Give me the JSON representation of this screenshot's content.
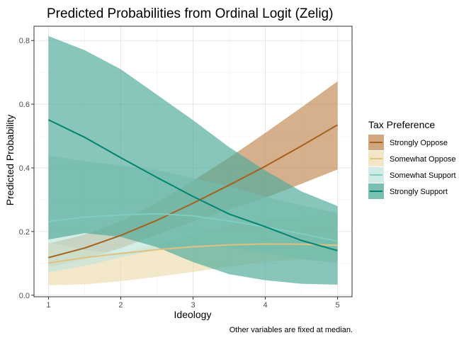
{
  "chart_data": {
    "type": "line",
    "title": "Predicted Probabilities from Ordinal Logit (Zelig)",
    "xlabel": "Ideology",
    "ylabel": "Predicted Probability",
    "caption": "Other variables are fixed at median.",
    "xlim": [
      0.8,
      5.2
    ],
    "ylim": [
      -0.005,
      0.845
    ],
    "x_ticks": [
      1,
      2,
      3,
      4,
      5
    ],
    "x_tick_labels": [
      "1",
      "2",
      "3",
      "4",
      "5"
    ],
    "y_ticks": [
      0.0,
      0.2,
      0.4,
      0.6,
      0.8
    ],
    "y_tick_labels": [
      "0.0",
      "0.2",
      "0.4",
      "0.6",
      "0.8"
    ],
    "grid": true,
    "legend": {
      "title": "Tax Preference",
      "position": "right"
    },
    "x": [
      1,
      1.5,
      2,
      2.5,
      3,
      3.5,
      4,
      4.5,
      5
    ],
    "series": [
      {
        "name": "Strongly Oppose",
        "color": "#A6611A",
        "ribbon_color": "#C28A55",
        "values": [
          0.118,
          0.148,
          0.188,
          0.235,
          0.289,
          0.346,
          0.405,
          0.469,
          0.535
        ],
        "lower": [
          0.088,
          0.113,
          0.148,
          0.19,
          0.232,
          0.27,
          0.306,
          0.35,
          0.395
        ],
        "upper": [
          0.162,
          0.19,
          0.232,
          0.29,
          0.359,
          0.432,
          0.51,
          0.59,
          0.672
        ]
      },
      {
        "name": "Somewhat Oppose",
        "color": "#DFC27D",
        "ribbon_color": "#EFDDB3",
        "values": [
          0.101,
          0.118,
          0.131,
          0.143,
          0.152,
          0.158,
          0.161,
          0.16,
          0.157
        ],
        "lower": [
          0.031,
          0.034,
          0.044,
          0.058,
          0.073,
          0.089,
          0.105,
          0.112,
          0.108
        ],
        "upper": [
          0.166,
          0.142,
          0.131,
          0.16,
          0.189,
          0.222,
          0.239,
          0.245,
          0.257
        ]
      },
      {
        "name": "Somewhat Support",
        "color": "#80CDC1",
        "ribbon_color": "#BFE4DC",
        "values": [
          0.232,
          0.245,
          0.252,
          0.256,
          0.249,
          0.233,
          0.215,
          0.193,
          0.17
        ],
        "lower": [
          0.071,
          0.092,
          0.119,
          0.142,
          0.152,
          0.149,
          0.133,
          0.113,
          0.101
        ],
        "upper": [
          0.439,
          0.421,
          0.407,
          0.393,
          0.368,
          0.343,
          0.31,
          0.282,
          0.258
        ]
      },
      {
        "name": "Strongly Support",
        "color": "#018571",
        "ribbon_color": "#4FAA9A",
        "values": [
          0.551,
          0.496,
          0.432,
          0.37,
          0.31,
          0.255,
          0.215,
          0.172,
          0.14
        ],
        "lower": [
          0.175,
          0.195,
          0.183,
          0.151,
          0.104,
          0.066,
          0.047,
          0.036,
          0.033
        ],
        "upper": [
          0.814,
          0.77,
          0.71,
          0.63,
          0.55,
          0.465,
          0.392,
          0.326,
          0.28
        ]
      }
    ]
  }
}
